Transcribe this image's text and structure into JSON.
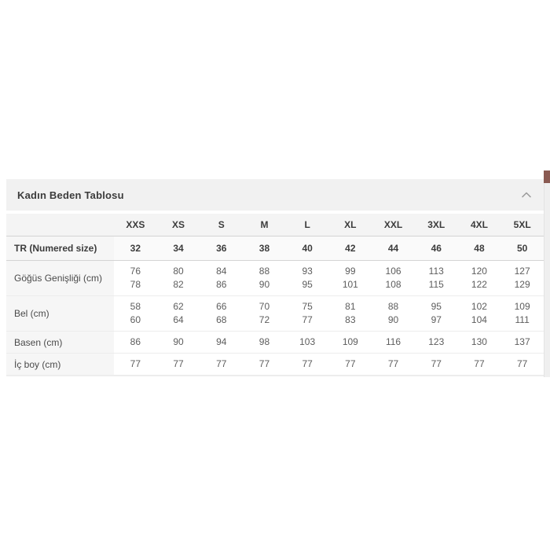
{
  "section": {
    "title": "Kadın Beden Tablosu"
  },
  "table": {
    "size_headers": [
      "XXS",
      "XS",
      "S",
      "M",
      "L",
      "XL",
      "XXL",
      "3XL",
      "4XL",
      "5XL"
    ],
    "rows": [
      {
        "label": "TR (Numered size)",
        "emphasis": true,
        "cells": [
          [
            "32"
          ],
          [
            "34"
          ],
          [
            "36"
          ],
          [
            "38"
          ],
          [
            "40"
          ],
          [
            "42"
          ],
          [
            "44"
          ],
          [
            "46"
          ],
          [
            "48"
          ],
          [
            "50"
          ]
        ]
      },
      {
        "label": "Göğüs Genişliği (cm)",
        "emphasis": false,
        "cells": [
          [
            "76",
            "78"
          ],
          [
            "80",
            "82"
          ],
          [
            "84",
            "86"
          ],
          [
            "88",
            "90"
          ],
          [
            "93",
            "95"
          ],
          [
            "99",
            "101"
          ],
          [
            "106",
            "108"
          ],
          [
            "113",
            "115"
          ],
          [
            "120",
            "122"
          ],
          [
            "127",
            "129"
          ]
        ]
      },
      {
        "label": "Bel (cm)",
        "emphasis": false,
        "cells": [
          [
            "58",
            "60"
          ],
          [
            "62",
            "64"
          ],
          [
            "66",
            "68"
          ],
          [
            "70",
            "72"
          ],
          [
            "75",
            "77"
          ],
          [
            "81",
            "83"
          ],
          [
            "88",
            "90"
          ],
          [
            "95",
            "97"
          ],
          [
            "102",
            "104"
          ],
          [
            "109",
            "111"
          ]
        ]
      },
      {
        "label": "Basen (cm)",
        "emphasis": false,
        "cells": [
          [
            "86"
          ],
          [
            "90"
          ],
          [
            "94"
          ],
          [
            "98"
          ],
          [
            "103"
          ],
          [
            "109"
          ],
          [
            "116"
          ],
          [
            "123"
          ],
          [
            "130"
          ],
          [
            "137"
          ]
        ]
      },
      {
        "label": "İç boy (cm)",
        "emphasis": false,
        "cells": [
          [
            "77"
          ],
          [
            "77"
          ],
          [
            "77"
          ],
          [
            "77"
          ],
          [
            "77"
          ],
          [
            "77"
          ],
          [
            "77"
          ],
          [
            "77"
          ],
          [
            "77"
          ],
          [
            "77"
          ]
        ]
      }
    ]
  },
  "icons": {
    "collapse": "chevron-up-icon"
  },
  "colors": {
    "section_header_bg": "#f1f1f1",
    "table_header_bg": "#f4f4f4",
    "tr_row_bg": "#fafafa",
    "label_col_bg": "#f6f6f6",
    "border_strong": "#d4d4d4",
    "border_light": "#ededed",
    "text_primary": "#3c3c3c",
    "text_secondary": "#5d5d5d",
    "scrollbar_thumb": "#8a5a52",
    "scrollbar_track": "#efefef"
  }
}
